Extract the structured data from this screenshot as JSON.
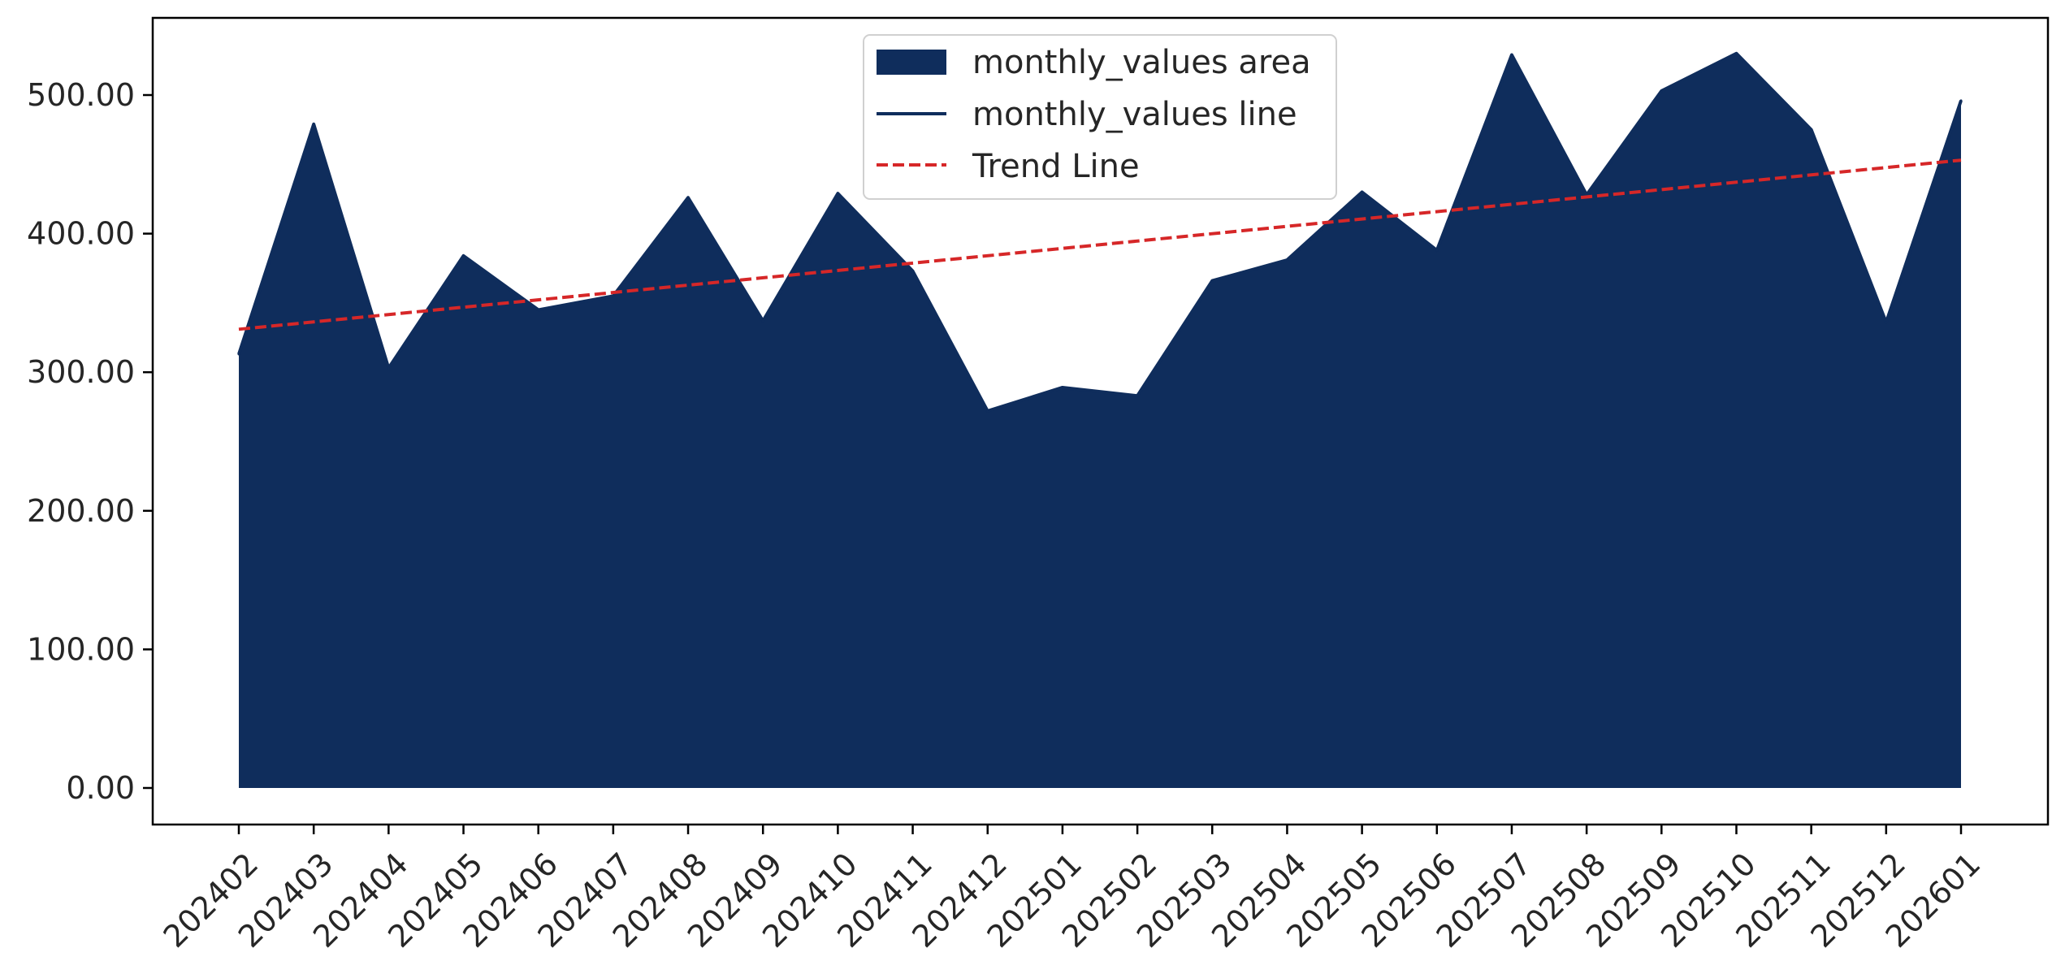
{
  "chart_data": {
    "type": "area",
    "title": "",
    "xlabel": "",
    "ylabel": "",
    "categories": [
      "202402",
      "202403",
      "202404",
      "202405",
      "202406",
      "202407",
      "202408",
      "202409",
      "202410",
      "202411",
      "202412",
      "202501",
      "202502",
      "202503",
      "202504",
      "202505",
      "202506",
      "202507",
      "202508",
      "202509",
      "202510",
      "202511",
      "202512",
      "202601"
    ],
    "series": [
      {
        "name": "monthly_values",
        "values": [
          313,
          479,
          303,
          384,
          345,
          355,
          426,
          337,
          429,
          373,
          272,
          289,
          283,
          366,
          381,
          430,
          388,
          529,
          428,
          503,
          530,
          475,
          336,
          496
        ]
      }
    ],
    "trend": {
      "start": 331,
      "end": 453
    },
    "ylim": [
      -25,
      555
    ],
    "yticks": [
      0,
      100,
      200,
      300,
      400,
      500
    ],
    "ytick_labels": [
      "0.00",
      "100.00",
      "200.00",
      "300.00",
      "400.00",
      "500.00"
    ],
    "grid": false,
    "legend_position": "top-center",
    "legend": [
      "monthly_values area",
      "monthly_values line",
      "Trend Line"
    ],
    "colors": {
      "area": "#0f2d5c",
      "line": "#0f2d5c",
      "trend": "#d62728"
    }
  }
}
